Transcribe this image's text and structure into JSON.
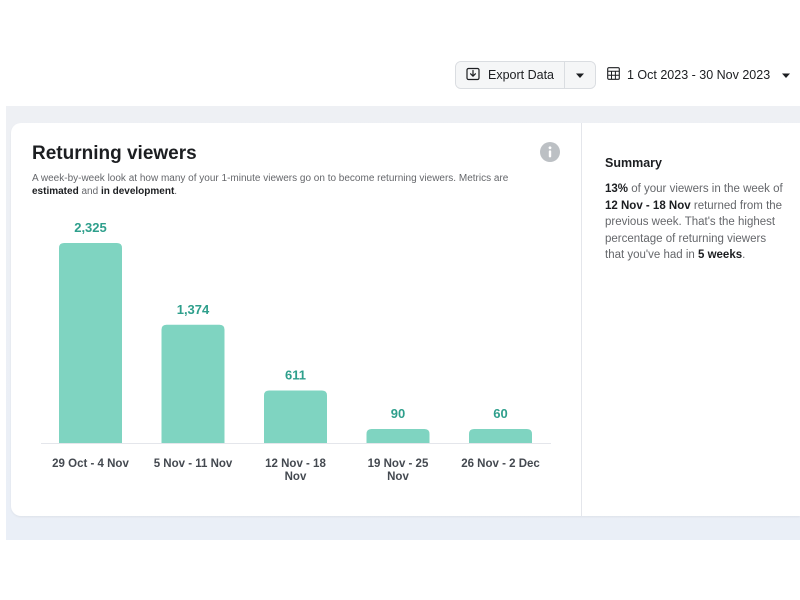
{
  "toolbar": {
    "export_label": "Export Data",
    "export_icon": "download-icon",
    "caret_icon": "caret-down-icon",
    "calendar_icon": "calendar-icon",
    "date_range": "1 Oct 2023 - 30 Nov 2023"
  },
  "card": {
    "title": "Returning viewers",
    "subtitle_lead": "A week-by-week look at how many of your 1-minute viewers go on to become returning viewers. Metrics are",
    "subtitle_bold1": "estimated",
    "subtitle_and": "and",
    "subtitle_bold2": "in development",
    "subtitle_end": ".",
    "info_icon": "info-icon"
  },
  "summary": {
    "title": "Summary",
    "pct": "13%",
    "t1": "of your viewers in the week of",
    "week": "12 Nov - 18 Nov",
    "t2": "returned from the previous week. That's the highest percentage of returning viewers that you've had in",
    "weeks": "5 weeks",
    "t3": "."
  },
  "chart_data": {
    "type": "bar",
    "categories": [
      [
        "29 Oct - 4 Nov"
      ],
      [
        "5 Nov - 11 Nov"
      ],
      [
        "12 Nov - 18",
        "Nov"
      ],
      [
        "19 Nov - 25",
        "Nov"
      ],
      [
        "26 Nov - 2 Dec"
      ]
    ],
    "values": [
      2325,
      1374,
      611,
      90,
      60
    ],
    "value_labels": [
      "2,325",
      "1,374",
      "611",
      "90",
      "60"
    ],
    "bar_color": "#7fd4c1",
    "label_color": "#2e9f8c",
    "grid": false
  }
}
